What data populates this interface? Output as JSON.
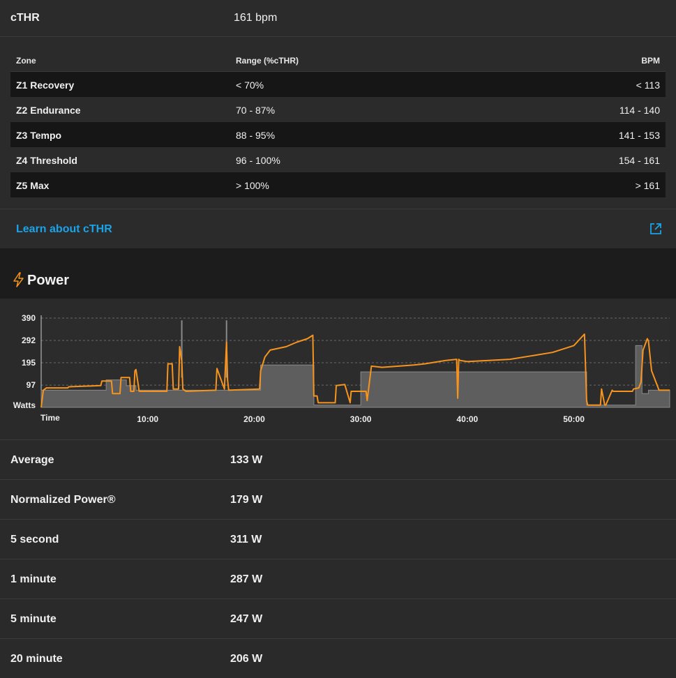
{
  "cthr": {
    "label": "cTHR",
    "value": "161 bpm"
  },
  "zones": {
    "headers": {
      "zone": "Zone",
      "range": "Range (%cTHR)",
      "bpm": "BPM"
    },
    "rows": [
      {
        "zone": "Z1 Recovery",
        "range": "< 70%",
        "bpm": "< 113"
      },
      {
        "zone": "Z2 Endurance",
        "range": "70 - 87%",
        "bpm": "114 - 140"
      },
      {
        "zone": "Z3 Tempo",
        "range": "88 - 95%",
        "bpm": "141 - 153"
      },
      {
        "zone": "Z4 Threshold",
        "range": "96 - 100%",
        "bpm": "154 - 161"
      },
      {
        "zone": "Z5 Max",
        "range": "> 100%",
        "bpm": "> 161"
      }
    ]
  },
  "learn": {
    "label": "Learn about cTHR"
  },
  "power": {
    "title": "Power"
  },
  "colors": {
    "accent": "#f7941d",
    "link": "#1aa3e8",
    "zone_fill": "#666666"
  },
  "chart_data": {
    "type": "line",
    "ylabel": "Watts",
    "xlabel": "Time",
    "yticks": [
      97,
      195,
      292,
      390
    ],
    "ylim": [
      0,
      390
    ],
    "xticks": [
      {
        "t": 10,
        "label": "10:00"
      },
      {
        "t": 20,
        "label": "20:00"
      },
      {
        "t": 30,
        "label": "30:00"
      },
      {
        "t": 40,
        "label": "40:00"
      },
      {
        "t": 50,
        "label": "50:00"
      }
    ],
    "xlim": [
      0,
      59
    ],
    "grid": true,
    "series": [
      {
        "role": "power",
        "color": "#f7941d",
        "x": [
          0,
          0.2,
          0.5,
          2.5,
          2.6,
          5.6,
          5.7,
          6.6,
          6.7,
          7.4,
          7.5,
          8.3,
          8.4,
          8.7,
          8.8,
          8.9,
          9.2,
          9.3,
          11.8,
          11.9,
          12.3,
          12.4,
          12.9,
          13.0,
          13.2,
          13.3,
          13.6,
          16.4,
          16.5,
          17.2,
          17.4,
          17.5,
          17.6,
          20.5,
          20.6,
          21.0,
          21.5,
          23.0,
          24.0,
          25.0,
          25.5,
          25.6,
          25.9,
          26.0,
          27.6,
          27.7,
          28.5,
          29.0,
          29.1,
          30.5,
          30.6,
          31.0,
          32.0,
          35.0,
          36.0,
          38.0,
          39.0,
          39.1,
          39.2,
          39.3,
          40.0,
          42.0,
          44.0,
          46.0,
          48.0,
          50.0,
          51.0,
          51.2,
          51.3,
          52.5,
          52.6,
          52.9,
          53.0,
          53.6,
          53.7,
          55.5,
          55.6,
          56.1,
          56.3,
          56.5,
          56.9,
          57.0,
          57.3,
          58.0,
          59.0
        ],
        "y": [
          0,
          75,
          85,
          85,
          90,
          95,
          115,
          115,
          60,
          60,
          130,
          130,
          70,
          70,
          160,
          165,
          70,
          70,
          70,
          190,
          190,
          80,
          80,
          265,
          200,
          80,
          70,
          75,
          170,
          80,
          285,
          120,
          75,
          80,
          160,
          220,
          250,
          265,
          285,
          300,
          315,
          50,
          50,
          20,
          20,
          95,
          100,
          20,
          70,
          70,
          30,
          180,
          175,
          185,
          190,
          205,
          210,
          40,
          210,
          205,
          200,
          205,
          210,
          225,
          240,
          270,
          320,
          30,
          10,
          10,
          80,
          10,
          10,
          75,
          70,
          70,
          80,
          85,
          110,
          250,
          300,
          290,
          160,
          75,
          75
        ]
      },
      {
        "role": "zone-average",
        "color": "#666666",
        "x": [
          0,
          6.1,
          6.1,
          8.0,
          8.0,
          8.9,
          8.9,
          20.6,
          20.6,
          25.6,
          25.6,
          30.0,
          30.0,
          51.2,
          51.2,
          55.8,
          55.8,
          56.4,
          56.4,
          57.0,
          57.0,
          59.0
        ],
        "y": [
          75,
          75,
          120,
          120,
          95,
          95,
          75,
          75,
          185,
          185,
          10,
          10,
          155,
          155,
          10,
          10,
          270,
          270,
          60,
          60,
          75,
          75
        ]
      }
    ]
  },
  "stats": [
    {
      "label": "Average",
      "value": "133 W"
    },
    {
      "label": "Normalized Power®",
      "value": "179 W"
    },
    {
      "label": "5 second",
      "value": "311 W"
    },
    {
      "label": "1 minute",
      "value": "287 W"
    },
    {
      "label": "5 minute",
      "value": "247 W"
    },
    {
      "label": "20 minute",
      "value": "206 W"
    }
  ]
}
